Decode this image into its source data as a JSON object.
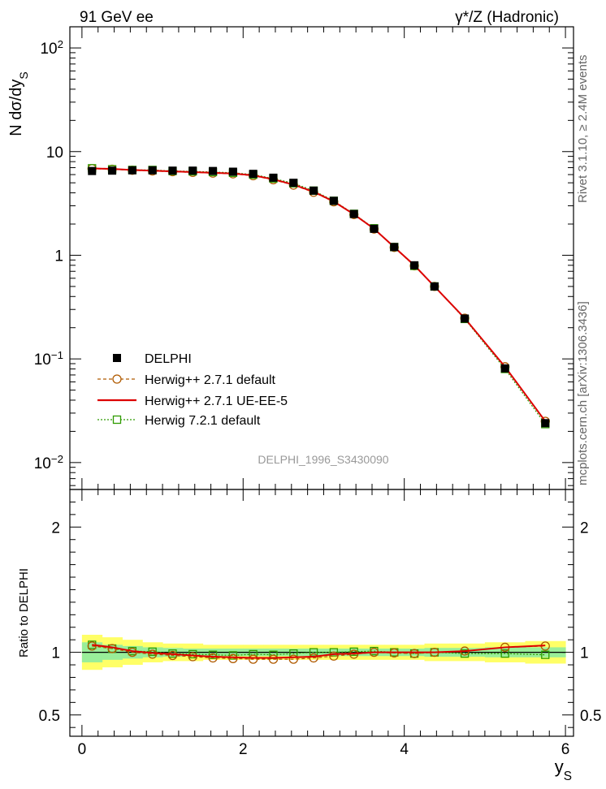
{
  "header": {
    "left": "91 GeV ee",
    "right": "γ*/Z (Hadronic)"
  },
  "side": {
    "rivet": "Rivet 3.1.10, ≥ 2.4M events",
    "mcplots": "mcplots.cern.ch [arXiv:1306.3436]"
  },
  "watermark": "DELPHI_1996_S3430090",
  "chart_data": [
    {
      "type": "scatter",
      "ylabel": "N dσ/dy_S",
      "yscale": "log",
      "xlim": [
        -0.15,
        6.1
      ],
      "ylim": [
        0.0055,
        160
      ],
      "ytick_labels": [
        "10⁻²",
        "10⁻¹",
        "1",
        "10",
        "10²"
      ],
      "legend_position": "bottom-left",
      "x": [
        0.125,
        0.375,
        0.625,
        0.875,
        1.125,
        1.375,
        1.625,
        1.875,
        2.125,
        2.375,
        2.625,
        2.875,
        3.125,
        3.375,
        3.625,
        3.875,
        4.125,
        4.375,
        4.75,
        5.25,
        5.75
      ],
      "series": [
        {
          "name": "DELPHI",
          "color": "#000000",
          "marker": "filled-square",
          "values": [
            6.5,
            6.55,
            6.6,
            6.6,
            6.55,
            6.55,
            6.5,
            6.4,
            6.1,
            5.6,
            5.0,
            4.2,
            3.35,
            2.5,
            1.8,
            1.2,
            0.8,
            0.5,
            0.245,
            0.081,
            0.024
          ]
        },
        {
          "name": "Herwig++ 2.7.1 default",
          "color": "#b05a00",
          "marker": "open-circle",
          "line": "dashed",
          "values": [
            6.85,
            6.75,
            6.6,
            6.5,
            6.4,
            6.3,
            6.2,
            6.1,
            5.85,
            5.35,
            4.75,
            4.05,
            3.28,
            2.47,
            1.79,
            1.19,
            0.79,
            0.5,
            0.247,
            0.084,
            0.025
          ]
        },
        {
          "name": "Herwig++ 2.7.1 UE-EE-5",
          "color": "#dd0000",
          "marker": "none",
          "line": "solid",
          "values": [
            6.9,
            6.8,
            6.65,
            6.55,
            6.45,
            6.35,
            6.25,
            6.15,
            5.9,
            5.4,
            4.8,
            4.1,
            3.3,
            2.48,
            1.8,
            1.2,
            0.8,
            0.5,
            0.247,
            0.084,
            0.025
          ]
        },
        {
          "name": "Herwig 7.2.1 default",
          "color": "#2e9b00",
          "marker": "open-square",
          "line": "dotted",
          "values": [
            6.9,
            6.75,
            6.65,
            6.65,
            6.5,
            6.45,
            6.35,
            6.25,
            6.0,
            5.5,
            4.95,
            4.2,
            3.35,
            2.51,
            1.82,
            1.2,
            0.79,
            0.5,
            0.243,
            0.08,
            0.0235
          ]
        }
      ]
    },
    {
      "type": "scatter",
      "ylabel": "Ratio to DELPHI",
      "xlabel": "y_S",
      "xlim": [
        -0.15,
        6.1
      ],
      "ylim": [
        0.33,
        2.3
      ],
      "xtick_labels": [
        "0",
        "2",
        "4",
        "6"
      ],
      "ytick_labels": [
        "0.5",
        "1",
        "2"
      ],
      "x": [
        0.125,
        0.375,
        0.625,
        0.875,
        1.125,
        1.375,
        1.625,
        1.875,
        2.125,
        2.375,
        2.625,
        2.875,
        3.125,
        3.375,
        3.625,
        3.875,
        4.125,
        4.375,
        4.75,
        5.25,
        5.75
      ],
      "band_outer": [
        0.14,
        0.12,
        0.1,
        0.08,
        0.07,
        0.07,
        0.06,
        0.06,
        0.06,
        0.06,
        0.06,
        0.06,
        0.06,
        0.06,
        0.06,
        0.06,
        0.06,
        0.07,
        0.07,
        0.08,
        0.09
      ],
      "band_inner": [
        0.08,
        0.06,
        0.05,
        0.04,
        0.035,
        0.03,
        0.03,
        0.03,
        0.03,
        0.03,
        0.03,
        0.03,
        0.03,
        0.03,
        0.03,
        0.03,
        0.03,
        0.035,
        0.035,
        0.04,
        0.04
      ],
      "band_colors": [
        "#ffff66",
        "#99ee99"
      ],
      "series": [
        {
          "name": "Herwig++ 2.7.1 default",
          "color": "#b05a00",
          "marker": "open-circle",
          "line": "dashed",
          "values": [
            1.05,
            1.03,
            1.0,
            0.985,
            0.975,
            0.965,
            0.955,
            0.95,
            0.945,
            0.945,
            0.945,
            0.955,
            0.97,
            0.985,
            1.0,
            0.995,
            0.99,
            1.0,
            1.01,
            1.04,
            1.05
          ]
        },
        {
          "name": "Herwig++ 2.7.1 UE-EE-5",
          "color": "#dd0000",
          "marker": "none",
          "line": "solid",
          "values": [
            1.06,
            1.04,
            1.01,
            0.995,
            0.985,
            0.975,
            0.965,
            0.96,
            0.955,
            0.955,
            0.96,
            0.965,
            0.985,
            0.99,
            1.0,
            1.0,
            1.0,
            1.0,
            1.01,
            1.04,
            1.055
          ]
        },
        {
          "name": "Herwig 7.2.1 default",
          "color": "#2e9b00",
          "marker": "open-square",
          "line": "dotted",
          "values": [
            1.06,
            1.03,
            1.01,
            1.005,
            0.99,
            0.985,
            0.98,
            0.975,
            0.985,
            0.98,
            0.99,
            1.0,
            1.0,
            1.005,
            1.01,
            1.0,
            0.99,
            1.0,
            0.99,
            0.99,
            0.98
          ]
        }
      ]
    }
  ]
}
